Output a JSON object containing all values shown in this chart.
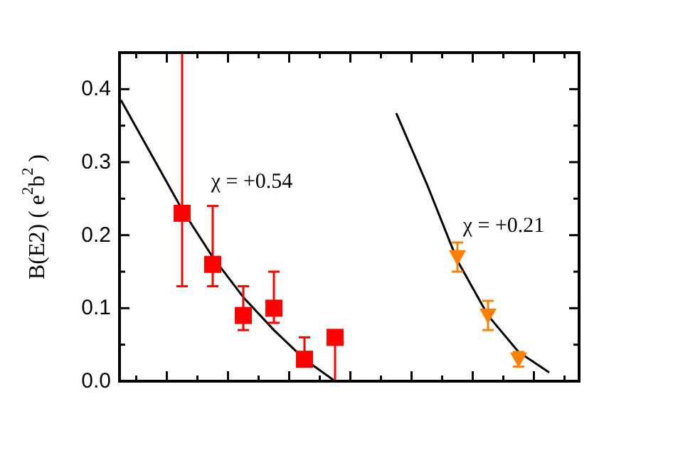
{
  "chart_data": {
    "type": "scatter",
    "ylabel": "B(E2) ( e$^{2}$b$^{2}$ )",
    "categories": [
      null,
      null,
      null,
      null,
      null,
      null,
      null,
      null,
      null,
      null,
      null,
      null,
      null,
      null,
      null
    ],
    "ylim": [
      0,
      0.45
    ],
    "yticks": [
      {
        "value": 0,
        "label": "0.0"
      },
      {
        "value": 0.05,
        "label": null
      },
      {
        "value": 0.1,
        "label": "0.1"
      },
      {
        "value": 0.15,
        "label": null
      },
      {
        "value": 0.2,
        "label": "0.2"
      },
      {
        "value": 0.25,
        "label": null
      },
      {
        "value": 0.3,
        "label": "0.3"
      },
      {
        "value": 0.35,
        "label": null
      },
      {
        "value": 0.4,
        "label": "0.4"
      }
    ],
    "legend": false,
    "series": [
      {
        "marker": "square",
        "color": "#ff0000",
        "values": [
          null,
          null,
          0.23,
          0.16,
          0.09,
          0.1,
          0.03,
          0.06,
          null,
          null,
          null,
          null,
          null,
          null,
          null
        ],
        "errors": [
          null,
          null,
          [
            0.13,
            0.45
          ],
          [
            0.13,
            0.24
          ],
          [
            0.07,
            0.13
          ],
          [
            0.08,
            0.15
          ],
          [
            0.03,
            0.06
          ],
          [
            0,
            0.06
          ],
          null,
          null,
          null,
          null,
          null,
          null,
          null
        ]
      },
      {
        "marker": "triangle",
        "color": "#ff8000",
        "values": [
          null,
          null,
          null,
          null,
          null,
          null,
          null,
          null,
          null,
          null,
          null,
          0.17,
          0.09,
          0.03,
          null
        ],
        "errors": [
          null,
          null,
          null,
          null,
          null,
          null,
          null,
          null,
          null,
          null,
          null,
          0.02,
          0.02,
          0.01,
          null
        ]
      },
      {
        "type": "line",
        "marker": "none",
        "color": "#000000",
        "values": [
          0.385,
          0.31,
          0.235,
          0.17,
          0.115,
          0.07,
          0.03,
          0,
          null,
          null,
          null,
          null,
          null,
          null,
          null
        ]
      },
      {
        "type": "line",
        "marker": "none",
        "color": "#000000",
        "values": [
          null,
          null,
          null,
          null,
          null,
          null,
          null,
          null,
          null,
          0.367,
          0.27,
          0.165,
          0.09,
          0.04,
          0.012
        ]
      }
    ],
    "annotations": [
      "χ = +0.54",
      "χ = +0.21"
    ]
  }
}
